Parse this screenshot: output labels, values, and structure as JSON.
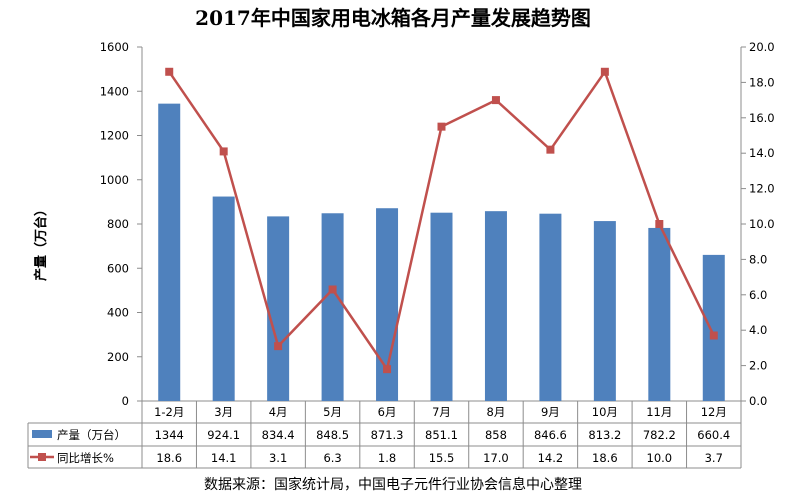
{
  "chart_data": {
    "type": "bar",
    "title": "2017年中国家用电冰箱各月产量发展趋势图",
    "ylabel": "产量（万台）",
    "categories": [
      "1-2月",
      "3月",
      "4月",
      "5月",
      "6月",
      "7月",
      "8月",
      "9月",
      "10月",
      "11月",
      "12月"
    ],
    "series": [
      {
        "name": "产量（万台）",
        "type": "bar",
        "axis": "left",
        "color": "#4F81BD",
        "values": [
          1344,
          924.1,
          834.4,
          848.5,
          871.3,
          851.1,
          858,
          846.6,
          813.2,
          782.2,
          660.4
        ]
      },
      {
        "name": "同比增长%",
        "type": "line",
        "axis": "right",
        "color": "#C0504D",
        "values": [
          18.6,
          14.1,
          3.1,
          6.3,
          1.8,
          15.5,
          17.0,
          14.2,
          18.6,
          10.0,
          3.7
        ]
      }
    ],
    "ylim": [
      0,
      1600
    ],
    "yticks": [
      0,
      200,
      400,
      600,
      800,
      1000,
      1200,
      1400,
      1600
    ],
    "y2lim": [
      0,
      20
    ],
    "y2ticks": [
      "0.0",
      "2.0",
      "4.0",
      "6.0",
      "8.0",
      "10.0",
      "12.0",
      "14.0",
      "16.0",
      "18.0",
      "20.0"
    ],
    "grid": false,
    "legend": "data-table-bottom"
  },
  "source": "数据来源：国家统计局，中国电子元件行业协会信息中心整理"
}
